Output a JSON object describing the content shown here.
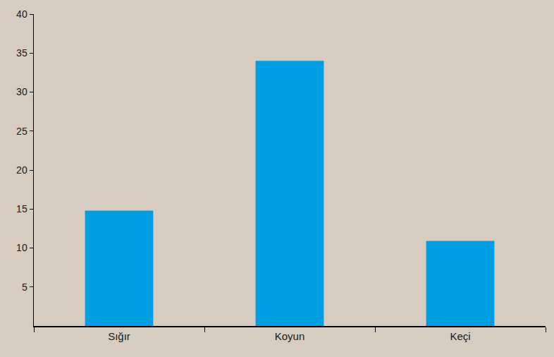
{
  "chart_data": {
    "type": "bar",
    "categories": [
      "Sığır",
      "Koyun",
      "Keçi"
    ],
    "values": [
      14.8,
      34,
      10.9
    ],
    "color": "#009fe3",
    "ylim": [
      0,
      40
    ],
    "yticks": [
      5,
      10,
      15,
      20,
      25,
      30,
      35,
      40
    ],
    "grid": false
  }
}
